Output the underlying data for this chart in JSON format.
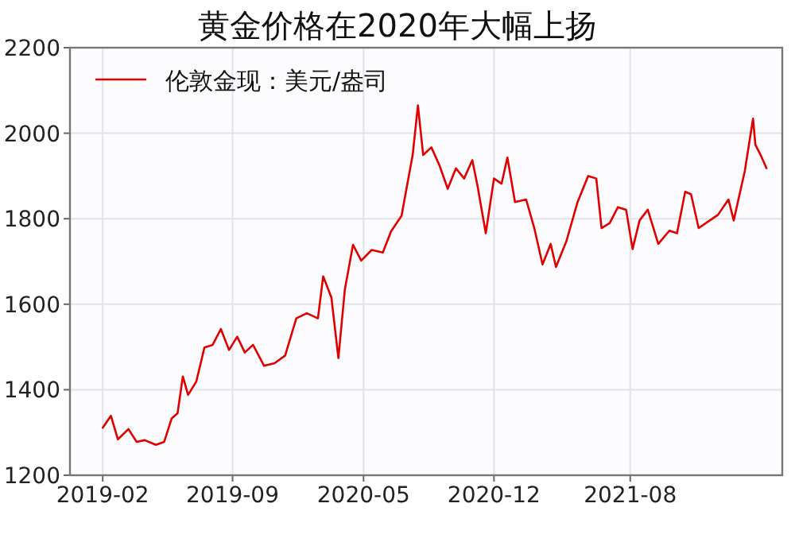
{
  "chart_data": {
    "type": "line",
    "title": "黄金价格在2020年大幅上扬",
    "xlim": [
      "2018-12-21",
      "2022-04-22"
    ],
    "xticks": [
      {
        "value": "2019-02-15",
        "label": "2019-02"
      },
      {
        "value": "2019-09-25",
        "label": "2019-09"
      },
      {
        "value": "2020-05-06",
        "label": "2020-05"
      },
      {
        "value": "2020-12-15",
        "label": "2020-12"
      },
      {
        "value": "2021-08-05",
        "label": "2021-08"
      }
    ],
    "ylim": [
      1200,
      2200
    ],
    "yticks": [
      1200,
      1400,
      1600,
      1800,
      2000,
      2200
    ],
    "grid": true,
    "legend": "top left",
    "marker": "none",
    "line_style": "solid",
    "x": [
      "2019-02-15",
      "2019-03-01",
      "2019-03-13",
      "2019-03-31",
      "2019-04-14",
      "2019-04-28",
      "2019-05-17",
      "2019-05-31",
      "2019-06-13",
      "2019-06-23",
      "2019-07-02",
      "2019-07-11",
      "2019-07-25",
      "2019-08-08",
      "2019-08-22",
      "2019-09-05",
      "2019-09-19",
      "2019-10-03",
      "2019-10-16",
      "2019-10-30",
      "2019-11-18",
      "2019-12-06",
      "2019-12-24",
      "2020-01-12",
      "2020-01-30",
      "2020-02-18",
      "2020-02-27",
      "2020-03-12",
      "2020-03-24",
      "2020-04-04",
      "2020-04-18",
      "2020-05-02",
      "2020-05-20",
      "2020-06-08",
      "2020-06-22",
      "2020-07-10",
      "2020-07-29",
      "2020-08-07",
      "2020-08-16",
      "2020-08-30",
      "2020-09-13",
      "2020-09-27",
      "2020-10-11",
      "2020-10-25",
      "2020-11-08",
      "2020-11-17",
      "2020-12-01",
      "2020-12-15",
      "2020-12-28",
      "2021-01-07",
      "2021-01-20",
      "2021-02-08",
      "2021-02-22",
      "2021-03-08",
      "2021-03-22",
      "2021-03-31",
      "2021-04-18",
      "2021-05-07",
      "2021-05-25",
      "2021-06-08",
      "2021-06-17",
      "2021-07-01",
      "2021-07-15",
      "2021-07-29",
      "2021-08-09",
      "2021-08-21",
      "2021-09-04",
      "2021-09-22",
      "2021-10-11",
      "2021-10-24",
      "2021-11-07",
      "2021-11-17",
      "2021-11-30",
      "2021-12-19",
      "2022-01-02",
      "2022-01-20",
      "2022-01-29",
      "2022-02-17",
      "2022-03-03",
      "2022-03-07",
      "2022-03-16",
      "2022-03-26"
    ],
    "series": [
      {
        "name": "伦敦金现：美元/盎司",
        "color": "#e00000",
        "values": [
          1311,
          1339,
          1284,
          1308,
          1278,
          1282,
          1271,
          1278,
          1333,
          1345,
          1431,
          1388,
          1419,
          1499,
          1505,
          1542,
          1493,
          1524,
          1487,
          1505,
          1456,
          1462,
          1480,
          1567,
          1579,
          1567,
          1665,
          1616,
          1474,
          1634,
          1739,
          1702,
          1727,
          1721,
          1770,
          1807,
          1949,
          2065,
          1949,
          1967,
          1924,
          1870,
          1918,
          1894,
          1937,
          1876,
          1766,
          1894,
          1882,
          1943,
          1839,
          1845,
          1778,
          1693,
          1741,
          1687,
          1748,
          1839,
          1900,
          1894,
          1778,
          1790,
          1827,
          1821,
          1729,
          1796,
          1821,
          1741,
          1772,
          1766,
          1863,
          1857,
          1778,
          1796,
          1809,
          1845,
          1796,
          1912,
          2034,
          1973,
          1949,
          1918
        ]
      }
    ]
  }
}
